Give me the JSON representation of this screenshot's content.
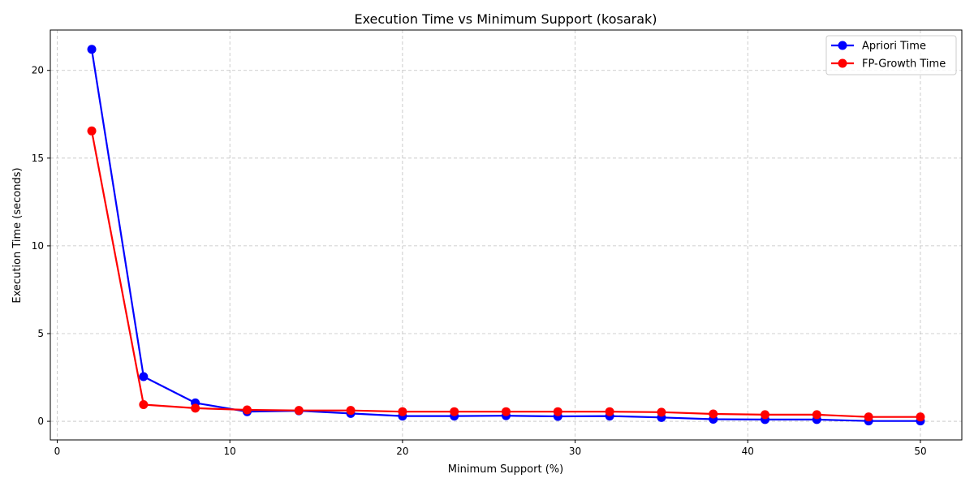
{
  "chart_data": {
    "type": "line",
    "title": "Execution Time vs Minimum Support (kosarak)",
    "xlabel": "Minimum Support (%)",
    "ylabel": "Execution Time (seconds)",
    "xlim": [
      -0.4,
      52.4
    ],
    "ylim": [
      -1.06,
      22.3
    ],
    "xticks": [
      0,
      10,
      20,
      30,
      40,
      50
    ],
    "yticks": [
      0,
      5,
      10,
      15,
      20
    ],
    "grid": true,
    "legend": "top-right",
    "x": [
      2,
      5,
      8,
      11,
      14,
      17,
      20,
      23,
      26,
      29,
      32,
      35,
      38,
      41,
      44,
      47,
      50
    ],
    "series": [
      {
        "name": "Apriori Time",
        "color": "#0000ff",
        "values": [
          21.2,
          2.55,
          1.05,
          0.55,
          0.6,
          0.45,
          0.3,
          0.3,
          0.32,
          0.28,
          0.3,
          0.22,
          0.12,
          0.1,
          0.1,
          0.02,
          0.02
        ]
      },
      {
        "name": "FP-Growth Time",
        "color": "#ff0000",
        "values": [
          16.55,
          0.95,
          0.75,
          0.65,
          0.62,
          0.62,
          0.55,
          0.55,
          0.55,
          0.55,
          0.55,
          0.52,
          0.42,
          0.38,
          0.38,
          0.25,
          0.25
        ]
      }
    ]
  }
}
